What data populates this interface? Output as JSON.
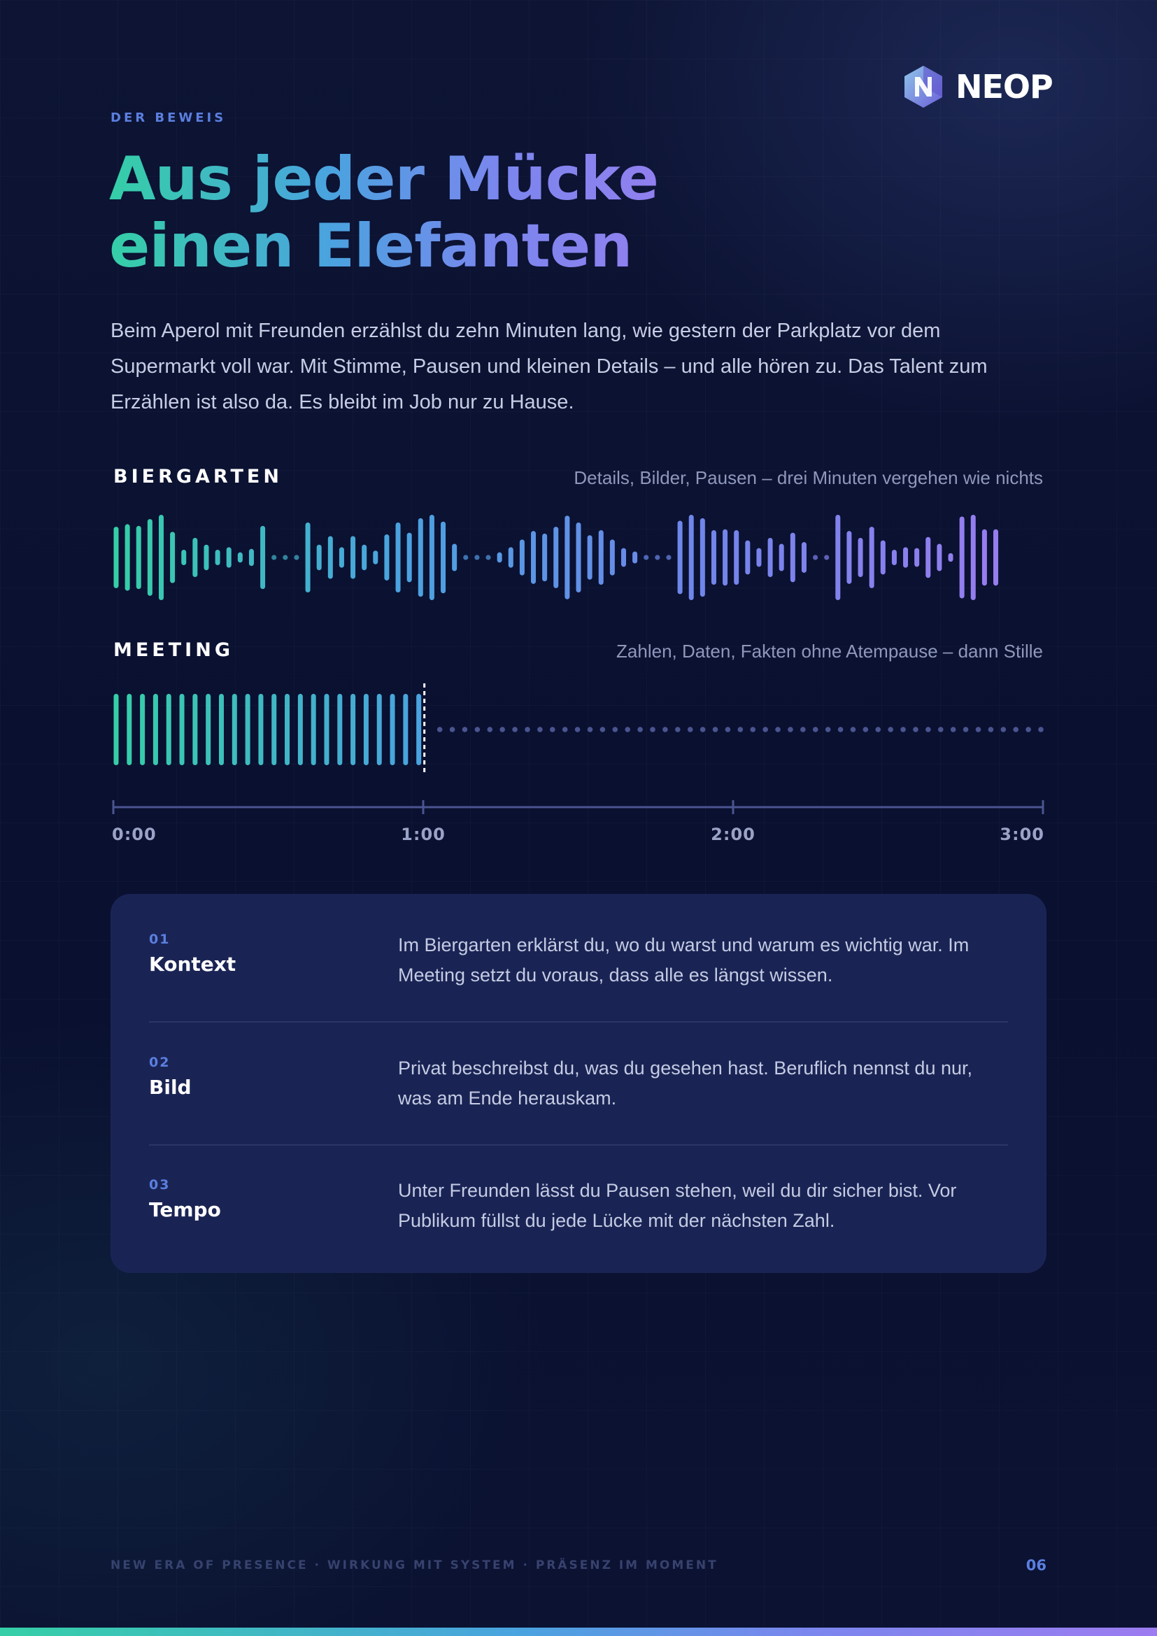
{
  "brand": {
    "name": "NEOP",
    "icon": "neop-hexagon-logo-icon"
  },
  "eyebrow": "DER BEWEIS",
  "title": {
    "line1": "Aus jeder Mücke",
    "line2": "einen Elefanten"
  },
  "intro": "Beim Aperol mit Freunden erzählst du zehn Minuten lang, wie gestern der Parkplatz vor dem Supermarkt voll war. Mit Stimme, Pausen und kleinen Details – und alle hören zu. Das Talent zum Erzählen ist also da. Es bleibt im Job nur zu Hause.",
  "colors": {
    "accent_green": "#35cfa7",
    "accent_blue": "#4aa3df",
    "accent_purple": "#9c7cf0",
    "marker": "#5b7fe0"
  },
  "waveforms": {
    "biergarten": {
      "label": "BIERGARTEN",
      "caption": "Details, Bilder, Pausen – drei Minuten vergehen wie nichts",
      "segments": [
        [
          0.72,
          0.78,
          0.74,
          0.9,
          1.0,
          0.6,
          0.18,
          0.46,
          0.3,
          0.18,
          0.24,
          0.12,
          0.2,
          0.74
        ],
        [
          0.82,
          0.3,
          0.5,
          0.24,
          0.5,
          0.3,
          0.16,
          0.54,
          0.82,
          0.58,
          0.92,
          1.0,
          0.84,
          0.32
        ],
        [
          0.12,
          0.24,
          0.42,
          0.62,
          0.56,
          0.72,
          0.98,
          0.82,
          0.52,
          0.64,
          0.42,
          0.22,
          0.14
        ],
        [
          0.86,
          1.0,
          0.92,
          0.64,
          0.66,
          0.64,
          0.4,
          0.22,
          0.46,
          0.32,
          0.58,
          0.36
        ],
        [
          1.0,
          0.62,
          0.46,
          0.72,
          0.4,
          0.18,
          0.24,
          0.22,
          0.48,
          0.32,
          0.1,
          0.96,
          1.0,
          0.66,
          0.66
        ]
      ],
      "pause_dots_between_segments": [
        3,
        3,
        3,
        2
      ]
    },
    "meeting": {
      "label": "MEETING",
      "caption": "Zahlen, Daten, Fakten ohne Atempause – dann Stille",
      "bar_count": 24,
      "bar_level": 1.0,
      "speech_ends_at": 1.0,
      "silence_dot_count": 49
    },
    "axis": {
      "unit": "minutes",
      "min": 0,
      "max": 3,
      "ticks": [
        {
          "value": 0,
          "label": "0:00"
        },
        {
          "value": 1,
          "label": "1:00"
        },
        {
          "value": 2,
          "label": "2:00"
        },
        {
          "value": 3,
          "label": "3:00"
        }
      ]
    }
  },
  "comparison": [
    {
      "num": "01",
      "name": "Kontext",
      "text": "Im Biergarten erklärst du, wo du warst und warum es wichtig war. Im Meeting setzt du voraus, dass alle es längst wissen."
    },
    {
      "num": "02",
      "name": "Bild",
      "text": "Privat beschreibst du, was du gesehen hast. Beruflich nennst du nur, was am Ende herauskam."
    },
    {
      "num": "03",
      "name": "Tempo",
      "text": "Unter Freunden lässt du Pausen stehen, weil du dir sicher bist. Vor Publikum füllst du jede Lücke mit der nächsten Zahl."
    }
  ],
  "footer": {
    "tagline": "NEW ERA OF PRESENCE · WIRKUNG MIT SYSTEM · PRÄSENZ IM MOMENT",
    "page": "06"
  }
}
